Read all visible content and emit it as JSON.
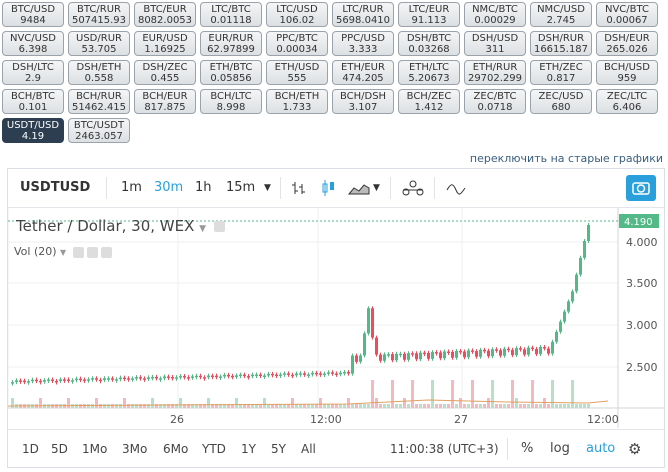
{
  "pairs": [
    {
      "p": "BTC/USD",
      "v": "9484"
    },
    {
      "p": "BTC/RUR",
      "v": "507415.93"
    },
    {
      "p": "BTC/EUR",
      "v": "8082.0053"
    },
    {
      "p": "LTC/BTC",
      "v": "0.01118"
    },
    {
      "p": "LTC/USD",
      "v": "106.02"
    },
    {
      "p": "LTC/RUR",
      "v": "5698.0410"
    },
    {
      "p": "LTC/EUR",
      "v": "91.113"
    },
    {
      "p": "NMC/BTC",
      "v": "0.00029"
    },
    {
      "p": "NMC/USD",
      "v": "2.745"
    },
    {
      "p": "NVC/BTC",
      "v": "0.00067"
    },
    {
      "p": "NVC/USD",
      "v": "6.398"
    },
    {
      "p": "USD/RUR",
      "v": "53.705"
    },
    {
      "p": "EUR/USD",
      "v": "1.16925"
    },
    {
      "p": "EUR/RUR",
      "v": "62.97899"
    },
    {
      "p": "PPC/BTC",
      "v": "0.00034"
    },
    {
      "p": "PPC/USD",
      "v": "3.333"
    },
    {
      "p": "DSH/BTC",
      "v": "0.03268"
    },
    {
      "p": "DSH/USD",
      "v": "311"
    },
    {
      "p": "DSH/RUR",
      "v": "16615.187"
    },
    {
      "p": "DSH/EUR",
      "v": "265.026"
    },
    {
      "p": "DSH/LTC",
      "v": "2.9"
    },
    {
      "p": "DSH/ETH",
      "v": "0.558"
    },
    {
      "p": "DSH/ZEC",
      "v": "0.455"
    },
    {
      "p": "ETH/BTC",
      "v": "0.05856"
    },
    {
      "p": "ETH/USD",
      "v": "555"
    },
    {
      "p": "ETH/EUR",
      "v": "474.205"
    },
    {
      "p": "ETH/LTC",
      "v": "5.20673"
    },
    {
      "p": "ETH/RUR",
      "v": "29702.299"
    },
    {
      "p": "ETH/ZEC",
      "v": "0.817"
    },
    {
      "p": "BCH/USD",
      "v": "959"
    },
    {
      "p": "BCH/BTC",
      "v": "0.101"
    },
    {
      "p": "BCH/RUR",
      "v": "51462.415"
    },
    {
      "p": "BCH/EUR",
      "v": "817.875"
    },
    {
      "p": "BCH/LTC",
      "v": "8.998"
    },
    {
      "p": "BCH/ETH",
      "v": "1.733"
    },
    {
      "p": "BCH/DSH",
      "v": "3.107"
    },
    {
      "p": "BCH/ZEC",
      "v": "1.412"
    },
    {
      "p": "ZEC/BTC",
      "v": "0.0718"
    },
    {
      "p": "ZEC/USD",
      "v": "680"
    },
    {
      "p": "ZEC/LTC",
      "v": "6.406"
    },
    {
      "p": "USDT/USD",
      "v": "4.19",
      "active": true
    },
    {
      "p": "BTC/USDT",
      "v": "2463.057"
    }
  ],
  "old_charts_link": "переключить на старые графики",
  "toolbar": {
    "symbol": "USDTUSD",
    "intervals": [
      "1m",
      "30m",
      "1h",
      "15m"
    ],
    "active_interval": "30m"
  },
  "legend": {
    "title": "Tether / Dollar, 30, WEX",
    "vol": "Vol (20)"
  },
  "price_axis": {
    "ticks": [
      "4.000",
      "3.500",
      "3.000",
      "2.500"
    ],
    "last": "4.190"
  },
  "time_axis": [
    "26",
    "12:00",
    "27",
    "12:00"
  ],
  "bottom": {
    "ranges": [
      "1D",
      "5D",
      "1Mo",
      "3Mo",
      "6Mo",
      "YTD",
      "1Y",
      "5Y",
      "All"
    ],
    "time": "11:00:38 (UTC+3)",
    "percent": "%",
    "log": "log",
    "auto": "auto"
  },
  "colors": {
    "up": "#53b987",
    "down": "#eb4d5c",
    "accent": "#29a0dc"
  },
  "icons": [
    "bar-style-icon",
    "candle-icon",
    "area-icon",
    "indicators-icon",
    "compare-icon",
    "camera-icon",
    "gear-icon"
  ]
}
